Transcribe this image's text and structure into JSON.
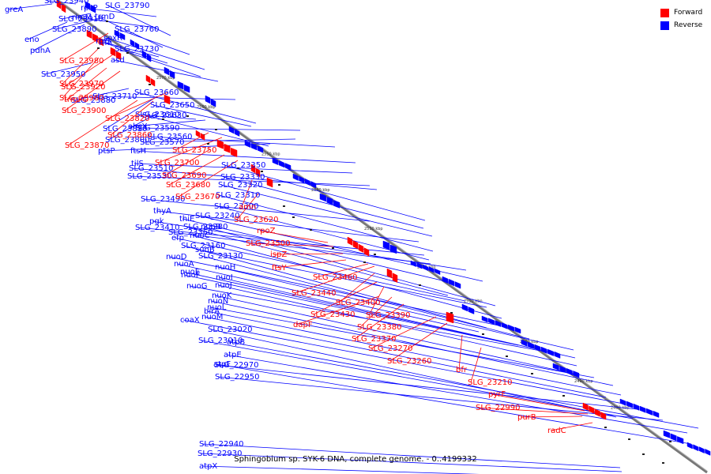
{
  "caption": "Sphingobium sp. SYK-6 DNA, complete genome. - 0..4199332",
  "legend": {
    "forward": "Forward",
    "reverse": "Reverse"
  },
  "colors": {
    "forward": "#ff0000",
    "reverse": "#0000ff",
    "axis": "#777777",
    "forward_line": "#ee1111",
    "reverse_line": "#1111dd"
  },
  "ticks": [
    "2570 kbp",
    "2560 kbp",
    "2550 kbp",
    "2540 kbp",
    "2530 kbp",
    "2520 kbp",
    "2510 kbp",
    "2500 kbp",
    "2490 kbp",
    "2480 kbp"
  ],
  "reverse_labels": [
    "greA",
    "SLG_23940",
    "SLG_23910",
    "SLG_23890",
    "rpsP",
    "rimM",
    "SLG_23790",
    "trmD",
    "SLG_23760",
    "rplS",
    "soxR",
    "SLG_23730",
    "asd",
    "eno",
    "pdhA",
    "ffh",
    "SLG_23950",
    "SLG_23880",
    "SLG_23810",
    "SLG_23800",
    "SLG_23710",
    "SLG_23610",
    "ahcY",
    "SLG_23660",
    "SLG_23650",
    "SLG_23590",
    "SLG_23630",
    "SLG_23570",
    "ptsP",
    "SLG_23560",
    "ftsH",
    "tilS",
    "SLG_23530",
    "SLG_23510",
    "SLG_23350",
    "SLG_23330",
    "SLG_23320",
    "SLG_23310",
    "SLG_23300",
    "SLG_23490",
    "thyA",
    "SLG_23410",
    "pgk",
    "SLG_23360",
    "thiE",
    "SLG_23240",
    "SLG_23280",
    "nuoB",
    "efp",
    "suhB",
    "nuoC",
    "SLG_23160",
    "nuoD",
    "SLG_23130",
    "nuoA",
    "nuoE",
    "nuoH",
    "nuoF",
    "nuoI",
    "nuoG",
    "nuoJ",
    "nuoK",
    "nuoN",
    "nuoL",
    "birA",
    "nuoM",
    "coaX",
    "SLG_23020",
    "SLG_23010",
    "atpB",
    "atpE",
    "SLG_22970",
    "atpF",
    "SLG_22950",
    "SLG_22940",
    "SLG_22930",
    "atpX"
  ],
  "forward_labels": [
    "SLG_23980",
    "SLG_23970",
    "SLG_23920",
    "SLG_23960",
    "trmFO",
    "SLG_23900",
    "SLG_23820",
    "SLG_23860",
    "SLG_23870",
    "SLG_23750",
    "SLG_23700",
    "SLG_23690",
    "SLG_23680",
    "SLG_23670",
    "amn",
    "SLG_23620",
    "rpoZ",
    "SLG_23500",
    "ispZ",
    "ftsY",
    "SLG_23460",
    "SLG_23440",
    "SLG_23400",
    "SLG_23430",
    "SLG_23390",
    "dapF",
    "SLG_23380",
    "SLG_23370",
    "SLG_23270",
    "SLG_23260",
    "bfr",
    "SLG_23210",
    "pyrF",
    "SLG_22990",
    "purB",
    "radC"
  ]
}
